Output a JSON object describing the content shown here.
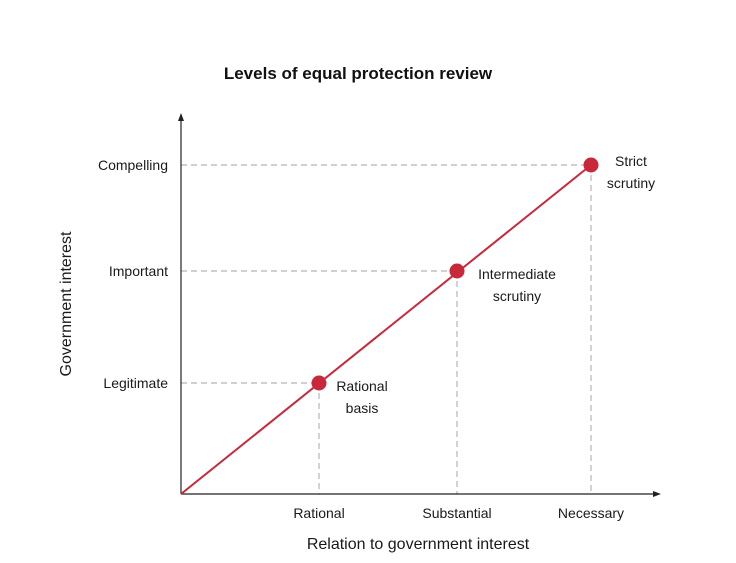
{
  "chart_data": {
    "type": "line",
    "title": "Levels of equal protection review",
    "xlabel": "Relation to government interest",
    "ylabel": "Government interest",
    "x_categories": [
      "Rational",
      "Substantial",
      "Necessary"
    ],
    "y_categories": [
      "Legitimate",
      "Important",
      "Compelling"
    ],
    "points": [
      {
        "x": "Rational",
        "y": "Legitimate",
        "label_lines": [
          "Rational",
          "basis"
        ]
      },
      {
        "x": "Substantial",
        "y": "Important",
        "label_lines": [
          "Intermediate",
          "scrutiny"
        ]
      },
      {
        "x": "Necessary",
        "y": "Compelling",
        "label_lines": [
          "Strict",
          "scrutiny"
        ]
      }
    ],
    "line_from_origin": true,
    "guides": "dashed",
    "colors": {
      "line": "#c8283a",
      "marker": "#c8283a",
      "guide": "#b3b3b3",
      "axis": "#222222"
    }
  }
}
